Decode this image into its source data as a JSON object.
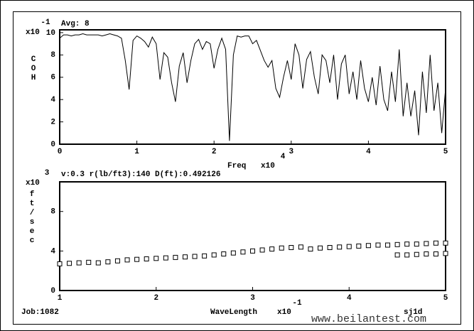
{
  "chart_data": [
    {
      "type": "line",
      "y_exponent": "-1",
      "y_exponent_base": "x10",
      "annotation": "Avg: 8",
      "ylabel": "COH",
      "xlabel": "Freq",
      "x_exponent_base": "x10",
      "x_exponent": "4",
      "color": "#000000",
      "x": [
        0,
        0.05,
        0.1,
        0.15,
        0.2,
        0.25,
        0.3,
        0.35,
        0.4,
        0.45,
        0.5,
        0.55,
        0.6,
        0.65,
        0.7,
        0.75,
        0.8,
        0.85,
        0.9,
        0.95,
        1,
        1.05,
        1.1,
        1.15,
        1.2,
        1.25,
        1.3,
        1.35,
        1.4,
        1.45,
        1.5,
        1.55,
        1.6,
        1.65,
        1.7,
        1.75,
        1.8,
        1.85,
        1.9,
        1.95,
        2,
        2.05,
        2.1,
        2.15,
        2.2,
        2.25,
        2.3,
        2.35,
        2.4,
        2.45,
        2.5,
        2.55,
        2.6,
        2.65,
        2.7,
        2.75,
        2.8,
        2.85,
        2.9,
        2.95,
        3,
        3.05,
        3.1,
        3.15,
        3.2,
        3.25,
        3.3,
        3.35,
        3.4,
        3.45,
        3.5,
        3.55,
        3.6,
        3.65,
        3.7,
        3.75,
        3.8,
        3.85,
        3.9,
        3.95,
        4,
        4.05,
        4.1,
        4.15,
        4.2,
        4.25,
        4.3,
        4.35,
        4.4,
        4.45,
        4.5,
        4.55,
        4.6,
        4.65,
        4.7,
        4.75,
        4.8,
        4.85,
        4.9,
        4.95,
        5
      ],
      "values": [
        9.5,
        9.8,
        9.8,
        9.7,
        9.8,
        9.8,
        9.9,
        9.8,
        9.8,
        9.8,
        9.8,
        9.7,
        9.8,
        9.9,
        9.8,
        9.7,
        9.5,
        7.5,
        4.9,
        9.3,
        9.7,
        9.5,
        9.2,
        8.7,
        9.6,
        9.0,
        5.8,
        8.2,
        7.8,
        5.5,
        3.8,
        7.0,
        8.2,
        5.5,
        7.5,
        9.0,
        9.4,
        8.5,
        9.2,
        9.0,
        6.8,
        8.5,
        9.5,
        8.5,
        0.3,
        8.0,
        9.7,
        9.6,
        9.7,
        9.7,
        9.0,
        9.3,
        8.4,
        7.5,
        6.9,
        7.5,
        5.0,
        4.2,
        6.0,
        7.5,
        5.8,
        9.0,
        8.0,
        5.0,
        7.6,
        8.3,
        6.0,
        4.5,
        8.0,
        7.5,
        5.5,
        8.0,
        4.0,
        7.2,
        8.0,
        4.5,
        6.5,
        4.0,
        7.5,
        5.0,
        3.8,
        6.0,
        3.5,
        7.0,
        4.0,
        3.0,
        6.5,
        3.8,
        8.5,
        2.5,
        5.5,
        2.5,
        4.8,
        0.8,
        6.5,
        2.8,
        8.0,
        3.0,
        5.5,
        1.0,
        5.0
      ],
      "xlim": [
        0,
        5
      ],
      "xticks": [
        0,
        1,
        2,
        3,
        4,
        5
      ],
      "ylim": [
        0,
        10.25
      ],
      "yticks": [
        0,
        2,
        4,
        6,
        8,
        10
      ]
    },
    {
      "type": "scatter",
      "y_exponent": "3",
      "y_exponent_base": "x10",
      "annotation": "v:0.3 r(lb/ft3):140 D(ft):0.492126",
      "ylabel": "ft/sec",
      "xlabel": "WaveLength",
      "x_exponent_base": "x10",
      "x_exponent": "-1",
      "color": "#000000",
      "x": [
        1,
        1.1,
        1.2,
        1.3,
        1.4,
        1.5,
        1.6,
        1.7,
        1.8,
        1.9,
        2,
        2.1,
        2.2,
        2.3,
        2.4,
        2.5,
        2.6,
        2.7,
        2.8,
        2.9,
        3,
        3.1,
        3.2,
        3.3,
        3.4,
        3.5,
        3.6,
        3.7,
        3.8,
        3.9,
        4,
        4.1,
        4.2,
        4.3,
        4.4,
        4.5,
        4.6,
        4.7,
        4.8,
        4.9,
        5,
        4.5,
        4.6,
        4.7,
        4.8,
        4.9,
        5
      ],
      "values": [
        2.7,
        2.75,
        2.8,
        2.85,
        2.8,
        2.9,
        3.0,
        3.1,
        3.15,
        3.2,
        3.25,
        3.3,
        3.35,
        3.4,
        3.45,
        3.5,
        3.6,
        3.7,
        3.8,
        3.9,
        4.0,
        4.1,
        4.2,
        4.3,
        4.35,
        4.4,
        4.2,
        4.3,
        4.35,
        4.4,
        4.45,
        4.5,
        4.55,
        4.6,
        4.6,
        4.65,
        4.7,
        4.7,
        4.75,
        4.8,
        4.8,
        3.6,
        3.6,
        3.65,
        3.7,
        3.7,
        3.75
      ],
      "xlim": [
        1,
        5
      ],
      "xticks": [
        1,
        2,
        3,
        4,
        5
      ],
      "ylim": [
        0,
        11
      ],
      "yticks": [
        0,
        4,
        8
      ]
    }
  ],
  "footer": {
    "job": "Job:1082",
    "file": "sj1d",
    "watermark": "www.beilantest.com"
  }
}
